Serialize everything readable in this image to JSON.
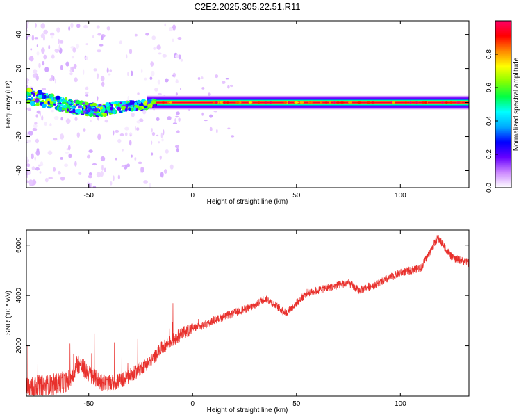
{
  "figure_title": "C2E2.2025.305.22.51.R11",
  "chart_data": [
    {
      "type": "heatmap",
      "xlabel": "Height of straight line (km)",
      "ylabel": "Frequency (Hz)",
      "xlim": [
        -80,
        133
      ],
      "ylim": [
        -50,
        48
      ],
      "x_ticks": [
        -50,
        0,
        50,
        100
      ],
      "y_ticks": [
        -40,
        -20,
        0,
        20,
        40
      ],
      "colorbar": {
        "label": "Normalized spectral amplitude",
        "range": [
          0,
          1
        ],
        "ticks": [
          "0.0",
          "0.2",
          "0.4",
          "0.6",
          "0.8"
        ],
        "colors": [
          "#ffffff",
          "#cc88ff",
          "#6600ff",
          "#0000ff",
          "#00aaff",
          "#00ffff",
          "#00ff44",
          "#88ff00",
          "#ffff00",
          "#ff8800",
          "#ff0000",
          "#ff0066"
        ]
      },
      "ridge": {
        "x": [
          -80,
          -70,
          -60,
          -50,
          -44,
          -38,
          -30,
          -22,
          -18,
          0,
          133
        ],
        "frequency": [
          4,
          1,
          -2,
          -4,
          -5,
          -3,
          -2,
          -1,
          0,
          0,
          0
        ]
      }
    },
    {
      "type": "line",
      "xlabel": "Height of straight line (km)",
      "ylabel": "SNR (10 * v/v)",
      "xlim": [
        -80,
        133
      ],
      "ylim": [
        0,
        6600
      ],
      "x_ticks": [
        -50,
        0,
        50,
        100
      ],
      "y_ticks": [
        2000,
        4000,
        6000
      ],
      "series": [
        {
          "color": "#e8302c",
          "x": [
            -80,
            -70,
            -60,
            -55,
            -50,
            -45,
            -40,
            -35,
            -30,
            -25,
            -20,
            -15,
            -10,
            -5,
            0,
            5,
            10,
            20,
            30,
            35,
            40,
            45,
            50,
            55,
            60,
            70,
            75,
            80,
            90,
            100,
            110,
            118,
            125,
            133
          ],
          "y": [
            300,
            400,
            600,
            1300,
            900,
            600,
            500,
            600,
            800,
            1100,
            1400,
            1900,
            2200,
            2500,
            2700,
            2800,
            3000,
            3300,
            3600,
            3900,
            3600,
            3300,
            3700,
            4100,
            4200,
            4400,
            4500,
            4200,
            4500,
            4900,
            5100,
            6300,
            5500,
            5300
          ]
        }
      ]
    }
  ]
}
